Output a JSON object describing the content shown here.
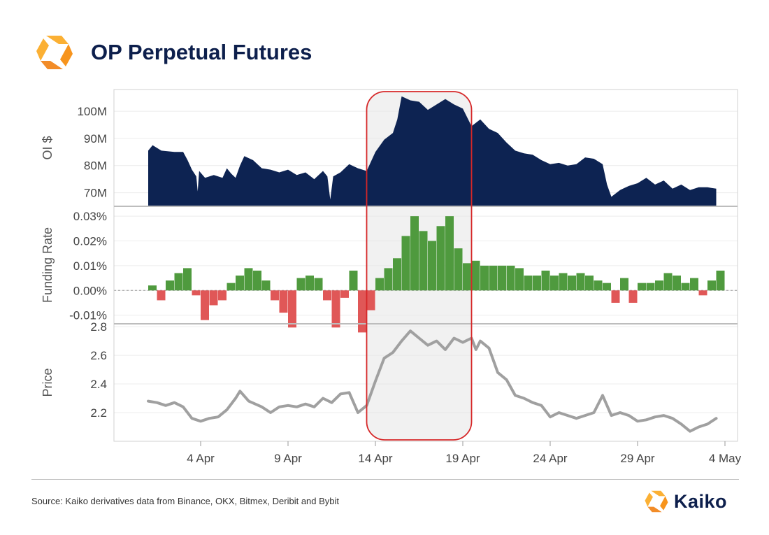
{
  "header": {
    "title": "OP Perpetual Futures"
  },
  "footer": {
    "source": "Source: Kaiko derivatives data from Binance, OKX, Bitmex, Deribit and Bybit",
    "brand": "Kaiko"
  },
  "colors": {
    "brand_orange": "#f7941d",
    "brand_yellow": "#fbb034",
    "oi_fill": "#0d2352",
    "funding_positive": "#4f9a3e",
    "funding_negative": "#e05757",
    "price_line": "#a0a0a0",
    "highlight_border": "#d62728",
    "highlight_fill": "#e6e6e6",
    "title_navy": "#0d1f4c"
  },
  "chart_data": {
    "type": "area",
    "x_type": "date",
    "x_range": [
      "2023-03-31",
      "2023-05-04"
    ],
    "x_ticks": [
      {
        "date": "2023-04-04",
        "label": "4 Apr"
      },
      {
        "date": "2023-04-09",
        "label": "9 Apr"
      },
      {
        "date": "2023-04-14",
        "label": "14 Apr"
      },
      {
        "date": "2023-04-19",
        "label": "19 Apr"
      },
      {
        "date": "2023-04-24",
        "label": "24 Apr"
      },
      {
        "date": "2023-04-29",
        "label": "29 Apr"
      },
      {
        "date": "2023-05-04",
        "label": "4 May"
      }
    ],
    "highlight_range": [
      "2023-04-13T12:00",
      "2023-04-19T12:00"
    ],
    "panels": [
      {
        "name": "oi",
        "type": "area",
        "ylabel": "OI $",
        "ylim": [
          65,
          108
        ],
        "y_ticks": [
          {
            "value": 70,
            "label": "70M"
          },
          {
            "value": 80,
            "label": "80M"
          },
          {
            "value": 90,
            "label": "90M"
          },
          {
            "value": 100,
            "label": "100M"
          }
        ],
        "points": [
          [
            "2023-04-01T00:00",
            85.5
          ],
          [
            "2023-04-01T06:00",
            87.5
          ],
          [
            "2023-04-01T18:00",
            85.5
          ],
          [
            "2023-04-02T12:00",
            85.0
          ],
          [
            "2023-04-03T00:00",
            85.0
          ],
          [
            "2023-04-03T06:00",
            82.0
          ],
          [
            "2023-04-03T12:00",
            78.5
          ],
          [
            "2023-04-03T18:00",
            76.0
          ],
          [
            "2023-04-03T20:00",
            70.5
          ],
          [
            "2023-04-03T22:00",
            78.0
          ],
          [
            "2023-04-04T06:00",
            75.5
          ],
          [
            "2023-04-04T18:00",
            76.5
          ],
          [
            "2023-04-05T06:00",
            75.5
          ],
          [
            "2023-04-05T12:00",
            79.0
          ],
          [
            "2023-04-05T18:00",
            77.0
          ],
          [
            "2023-04-06T00:00",
            75.5
          ],
          [
            "2023-04-06T06:00",
            80.0
          ],
          [
            "2023-04-06T12:00",
            83.5
          ],
          [
            "2023-04-07T00:00",
            82.0
          ],
          [
            "2023-04-07T12:00",
            79.0
          ],
          [
            "2023-04-08T00:00",
            78.5
          ],
          [
            "2023-04-08T12:00",
            77.5
          ],
          [
            "2023-04-09T00:00",
            78.5
          ],
          [
            "2023-04-09T12:00",
            76.5
          ],
          [
            "2023-04-10T00:00",
            77.5
          ],
          [
            "2023-04-10T12:00",
            75.0
          ],
          [
            "2023-04-11T00:00",
            78.0
          ],
          [
            "2023-04-11T06:00",
            76.0
          ],
          [
            "2023-04-11T10:00",
            67.5
          ],
          [
            "2023-04-11T14:00",
            76.0
          ],
          [
            "2023-04-12T00:00",
            77.5
          ],
          [
            "2023-04-12T12:00",
            80.5
          ],
          [
            "2023-04-13T00:00",
            79.0
          ],
          [
            "2023-04-13T12:00",
            78.0
          ],
          [
            "2023-04-14T00:00",
            85.0
          ],
          [
            "2023-04-14T12:00",
            89.5
          ],
          [
            "2023-04-15T00:00",
            92.0
          ],
          [
            "2023-04-15T06:00",
            97.0
          ],
          [
            "2023-04-15T12:00",
            105.5
          ],
          [
            "2023-04-16T00:00",
            104.0
          ],
          [
            "2023-04-16T12:00",
            103.5
          ],
          [
            "2023-04-17T00:00",
            100.5
          ],
          [
            "2023-04-17T12:00",
            102.5
          ],
          [
            "2023-04-18T00:00",
            104.5
          ],
          [
            "2023-04-18T12:00",
            102.5
          ],
          [
            "2023-04-19T00:00",
            101.0
          ],
          [
            "2023-04-19T12:00",
            94.5
          ],
          [
            "2023-04-20T00:00",
            97.0
          ],
          [
            "2023-04-20T12:00",
            93.5
          ],
          [
            "2023-04-21T00:00",
            92.0
          ],
          [
            "2023-04-21T12:00",
            88.5
          ],
          [
            "2023-04-22T00:00",
            85.5
          ],
          [
            "2023-04-22T12:00",
            84.5
          ],
          [
            "2023-04-23T00:00",
            84.0
          ],
          [
            "2023-04-23T12:00",
            82.0
          ],
          [
            "2023-04-24T00:00",
            80.5
          ],
          [
            "2023-04-24T12:00",
            81.0
          ],
          [
            "2023-04-25T00:00",
            80.0
          ],
          [
            "2023-04-25T12:00",
            80.5
          ],
          [
            "2023-04-26T00:00",
            83.0
          ],
          [
            "2023-04-26T12:00",
            82.5
          ],
          [
            "2023-04-27T00:00",
            80.5
          ],
          [
            "2023-04-27T06:00",
            73.0
          ],
          [
            "2023-04-27T12:00",
            68.5
          ],
          [
            "2023-04-28T00:00",
            71.0
          ],
          [
            "2023-04-28T12:00",
            72.5
          ],
          [
            "2023-04-29T00:00",
            73.5
          ],
          [
            "2023-04-29T12:00",
            75.5
          ],
          [
            "2023-04-30T00:00",
            73.0
          ],
          [
            "2023-04-30T12:00",
            74.5
          ],
          [
            "2023-05-01T00:00",
            71.5
          ],
          [
            "2023-05-01T12:00",
            73.0
          ],
          [
            "2023-05-02T00:00",
            71.0
          ],
          [
            "2023-05-02T12:00",
            72.0
          ],
          [
            "2023-05-03T00:00",
            72.0
          ],
          [
            "2023-05-03T12:00",
            71.5
          ]
        ]
      },
      {
        "name": "funding",
        "type": "bar",
        "ylabel": "Funding Rate",
        "ylim": [
          -0.0135,
          0.034
        ],
        "zero_line": true,
        "y_ticks": [
          {
            "value": -0.01,
            "label": "-0.01%"
          },
          {
            "value": 0.0,
            "label": "0.00%"
          },
          {
            "value": 0.01,
            "label": "0.01%"
          },
          {
            "value": 0.02,
            "label": "0.02%"
          },
          {
            "value": 0.03,
            "label": "0.03%"
          }
        ],
        "bars": [
          [
            "2023-04-01T00:00",
            0.002
          ],
          [
            "2023-04-01T12:00",
            -0.004
          ],
          [
            "2023-04-02T00:00",
            0.004
          ],
          [
            "2023-04-02T12:00",
            0.007
          ],
          [
            "2023-04-03T00:00",
            0.009
          ],
          [
            "2023-04-03T12:00",
            -0.002
          ],
          [
            "2023-04-04T00:00",
            -0.012
          ],
          [
            "2023-04-04T12:00",
            -0.006
          ],
          [
            "2023-04-05T00:00",
            -0.004
          ],
          [
            "2023-04-05T12:00",
            0.003
          ],
          [
            "2023-04-06T00:00",
            0.006
          ],
          [
            "2023-04-06T12:00",
            0.009
          ],
          [
            "2023-04-07T00:00",
            0.008
          ],
          [
            "2023-04-07T12:00",
            0.004
          ],
          [
            "2023-04-08T00:00",
            -0.004
          ],
          [
            "2023-04-08T12:00",
            -0.009
          ],
          [
            "2023-04-09T00:00",
            -0.015
          ],
          [
            "2023-04-09T12:00",
            0.005
          ],
          [
            "2023-04-10T00:00",
            0.006
          ],
          [
            "2023-04-10T12:00",
            0.005
          ],
          [
            "2023-04-11T00:00",
            -0.004
          ],
          [
            "2023-04-11T12:00",
            -0.015
          ],
          [
            "2023-04-12T00:00",
            -0.003
          ],
          [
            "2023-04-12T12:00",
            0.008
          ],
          [
            "2023-04-13T00:00",
            -0.017
          ],
          [
            "2023-04-13T12:00",
            -0.008
          ],
          [
            "2023-04-14T00:00",
            0.005
          ],
          [
            "2023-04-14T12:00",
            0.009
          ],
          [
            "2023-04-15T00:00",
            0.013
          ],
          [
            "2023-04-15T12:00",
            0.022
          ],
          [
            "2023-04-16T00:00",
            0.03
          ],
          [
            "2023-04-16T12:00",
            0.024
          ],
          [
            "2023-04-17T00:00",
            0.02
          ],
          [
            "2023-04-17T12:00",
            0.026
          ],
          [
            "2023-04-18T00:00",
            0.03
          ],
          [
            "2023-04-18T12:00",
            0.017
          ],
          [
            "2023-04-19T00:00",
            0.011
          ],
          [
            "2023-04-19T12:00",
            0.012
          ],
          [
            "2023-04-20T00:00",
            0.01
          ],
          [
            "2023-04-20T12:00",
            0.01
          ],
          [
            "2023-04-21T00:00",
            0.01
          ],
          [
            "2023-04-21T12:00",
            0.01
          ],
          [
            "2023-04-22T00:00",
            0.009
          ],
          [
            "2023-04-22T12:00",
            0.006
          ],
          [
            "2023-04-23T00:00",
            0.006
          ],
          [
            "2023-04-23T12:00",
            0.008
          ],
          [
            "2023-04-24T00:00",
            0.006
          ],
          [
            "2023-04-24T12:00",
            0.007
          ],
          [
            "2023-04-25T00:00",
            0.006
          ],
          [
            "2023-04-25T12:00",
            0.007
          ],
          [
            "2023-04-26T00:00",
            0.006
          ],
          [
            "2023-04-26T12:00",
            0.004
          ],
          [
            "2023-04-27T00:00",
            0.003
          ],
          [
            "2023-04-27T12:00",
            -0.005
          ],
          [
            "2023-04-28T00:00",
            0.005
          ],
          [
            "2023-04-28T12:00",
            -0.005
          ],
          [
            "2023-04-29T00:00",
            0.003
          ],
          [
            "2023-04-29T12:00",
            0.003
          ],
          [
            "2023-04-30T00:00",
            0.004
          ],
          [
            "2023-04-30T12:00",
            0.007
          ],
          [
            "2023-05-01T00:00",
            0.006
          ],
          [
            "2023-05-01T12:00",
            0.003
          ],
          [
            "2023-05-02T00:00",
            0.005
          ],
          [
            "2023-05-02T12:00",
            -0.002
          ],
          [
            "2023-05-03T00:00",
            0.004
          ],
          [
            "2023-05-03T12:00",
            0.008
          ]
        ]
      },
      {
        "name": "price",
        "type": "line",
        "ylabel": "Price",
        "ylim": [
          2.0,
          2.82
        ],
        "y_ticks": [
          {
            "value": 2.2,
            "label": "2.2"
          },
          {
            "value": 2.4,
            "label": "2.4"
          },
          {
            "value": 2.6,
            "label": "2.6"
          },
          {
            "value": 2.8,
            "label": "2.8"
          }
        ],
        "points": [
          [
            "2023-04-01T00:00",
            2.28
          ],
          [
            "2023-04-01T12:00",
            2.27
          ],
          [
            "2023-04-02T00:00",
            2.25
          ],
          [
            "2023-04-02T12:00",
            2.27
          ],
          [
            "2023-04-03T00:00",
            2.24
          ],
          [
            "2023-04-03T12:00",
            2.16
          ],
          [
            "2023-04-04T00:00",
            2.14
          ],
          [
            "2023-04-04T12:00",
            2.16
          ],
          [
            "2023-04-05T00:00",
            2.17
          ],
          [
            "2023-04-05T12:00",
            2.22
          ],
          [
            "2023-04-06T00:00",
            2.3
          ],
          [
            "2023-04-06T06:00",
            2.35
          ],
          [
            "2023-04-06T18:00",
            2.28
          ],
          [
            "2023-04-07T12:00",
            2.24
          ],
          [
            "2023-04-08T00:00",
            2.2
          ],
          [
            "2023-04-08T12:00",
            2.24
          ],
          [
            "2023-04-09T00:00",
            2.25
          ],
          [
            "2023-04-09T12:00",
            2.24
          ],
          [
            "2023-04-10T00:00",
            2.26
          ],
          [
            "2023-04-10T12:00",
            2.24
          ],
          [
            "2023-04-11T00:00",
            2.3
          ],
          [
            "2023-04-11T12:00",
            2.27
          ],
          [
            "2023-04-12T00:00",
            2.33
          ],
          [
            "2023-04-12T12:00",
            2.34
          ],
          [
            "2023-04-13T00:00",
            2.2
          ],
          [
            "2023-04-13T12:00",
            2.25
          ],
          [
            "2023-04-14T00:00",
            2.42
          ],
          [
            "2023-04-14T12:00",
            2.58
          ],
          [
            "2023-04-15T00:00",
            2.62
          ],
          [
            "2023-04-15T12:00",
            2.7
          ],
          [
            "2023-04-16T00:00",
            2.77
          ],
          [
            "2023-04-16T12:00",
            2.72
          ],
          [
            "2023-04-17T00:00",
            2.67
          ],
          [
            "2023-04-17T12:00",
            2.7
          ],
          [
            "2023-04-18T00:00",
            2.64
          ],
          [
            "2023-04-18T12:00",
            2.72
          ],
          [
            "2023-04-19T00:00",
            2.69
          ],
          [
            "2023-04-19T12:00",
            2.72
          ],
          [
            "2023-04-19T18:00",
            2.64
          ],
          [
            "2023-04-20T00:00",
            2.7
          ],
          [
            "2023-04-20T12:00",
            2.65
          ],
          [
            "2023-04-21T00:00",
            2.48
          ],
          [
            "2023-04-21T12:00",
            2.43
          ],
          [
            "2023-04-22T00:00",
            2.32
          ],
          [
            "2023-04-22T12:00",
            2.3
          ],
          [
            "2023-04-23T00:00",
            2.27
          ],
          [
            "2023-04-23T12:00",
            2.25
          ],
          [
            "2023-04-24T00:00",
            2.17
          ],
          [
            "2023-04-24T12:00",
            2.2
          ],
          [
            "2023-04-25T00:00",
            2.18
          ],
          [
            "2023-04-25T12:00",
            2.16
          ],
          [
            "2023-04-26T00:00",
            2.18
          ],
          [
            "2023-04-26T12:00",
            2.2
          ],
          [
            "2023-04-27T00:00",
            2.32
          ],
          [
            "2023-04-27T12:00",
            2.18
          ],
          [
            "2023-04-28T00:00",
            2.2
          ],
          [
            "2023-04-28T12:00",
            2.18
          ],
          [
            "2023-04-29T00:00",
            2.14
          ],
          [
            "2023-04-29T12:00",
            2.15
          ],
          [
            "2023-04-30T00:00",
            2.17
          ],
          [
            "2023-04-30T12:00",
            2.18
          ],
          [
            "2023-05-01T00:00",
            2.16
          ],
          [
            "2023-05-01T12:00",
            2.12
          ],
          [
            "2023-05-02T00:00",
            2.07
          ],
          [
            "2023-05-02T12:00",
            2.1
          ],
          [
            "2023-05-03T00:00",
            2.12
          ],
          [
            "2023-05-03T12:00",
            2.16
          ]
        ]
      }
    ]
  }
}
